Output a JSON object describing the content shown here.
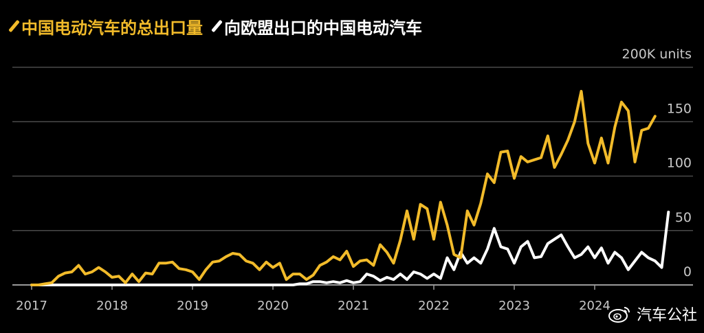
{
  "legend": {
    "total_label": "中国电动汽车的总出口量",
    "eu_label": "向欧盟出口的中国电动汽车"
  },
  "colors": {
    "total": "#f2bb2a",
    "eu": "#ffffff",
    "grid": "#4a4a4a",
    "tick_text": "#c8c8c8",
    "background": "#000000"
  },
  "watermark": {
    "text": "汽车公社",
    "icon": "weibo-icon"
  },
  "chart_data": {
    "type": "line",
    "ylim": [
      0,
      200
    ],
    "yticks": [
      {
        "value": 200,
        "label": "200K units"
      },
      {
        "value": 150,
        "label": "150"
      },
      {
        "value": 100,
        "label": "100"
      },
      {
        "value": 50,
        "label": "50"
      },
      {
        "value": 0,
        "label": "0"
      }
    ],
    "x_start": "2017-01",
    "x_labels": [
      "2017",
      "2018",
      "2019",
      "2020",
      "2021",
      "2022",
      "2023",
      "2024"
    ],
    "series": [
      {
        "name": "中国电动汽车的总出口量",
        "values": [
          0,
          0,
          1,
          2,
          8,
          11,
          12,
          18,
          10,
          12,
          16,
          12,
          7,
          8,
          2,
          10,
          3,
          11,
          10,
          20,
          20,
          21,
          15,
          14,
          12,
          5,
          14,
          21,
          22,
          26,
          29,
          28,
          22,
          20,
          14,
          21,
          16,
          20,
          5,
          10,
          10,
          5,
          9,
          18,
          21,
          26,
          23,
          31,
          17,
          22,
          23,
          18,
          37,
          30,
          20,
          41,
          68,
          42,
          74,
          70,
          42,
          76,
          55,
          28,
          25,
          68,
          55,
          75,
          102,
          94,
          122,
          123,
          98,
          118,
          113,
          115,
          117,
          137,
          108,
          120,
          133,
          150,
          178,
          130,
          112,
          135,
          112,
          145,
          168,
          160,
          113,
          142,
          144,
          155
        ]
      },
      {
        "name": "向欧盟出口的中国电动汽车",
        "values": [
          0,
          0,
          0,
          0,
          0,
          0,
          0,
          0,
          0,
          0,
          0,
          0,
          0,
          0,
          0,
          0,
          0,
          0,
          0,
          0,
          0,
          0,
          0,
          0,
          0,
          0,
          0,
          0,
          0,
          0,
          0,
          0,
          0,
          0,
          0,
          0,
          0,
          0,
          0,
          0,
          1,
          1,
          3,
          3,
          2,
          3,
          2,
          4,
          2,
          3,
          10,
          8,
          4,
          7,
          5,
          10,
          5,
          12,
          10,
          6,
          10,
          6,
          25,
          14,
          30,
          20,
          25,
          20,
          33,
          52,
          35,
          33,
          20,
          35,
          40,
          25,
          26,
          38,
          42,
          46,
          35,
          25,
          28,
          35,
          25,
          34,
          20,
          30,
          25,
          14,
          22,
          30,
          25,
          22,
          16,
          67
        ]
      }
    ]
  }
}
